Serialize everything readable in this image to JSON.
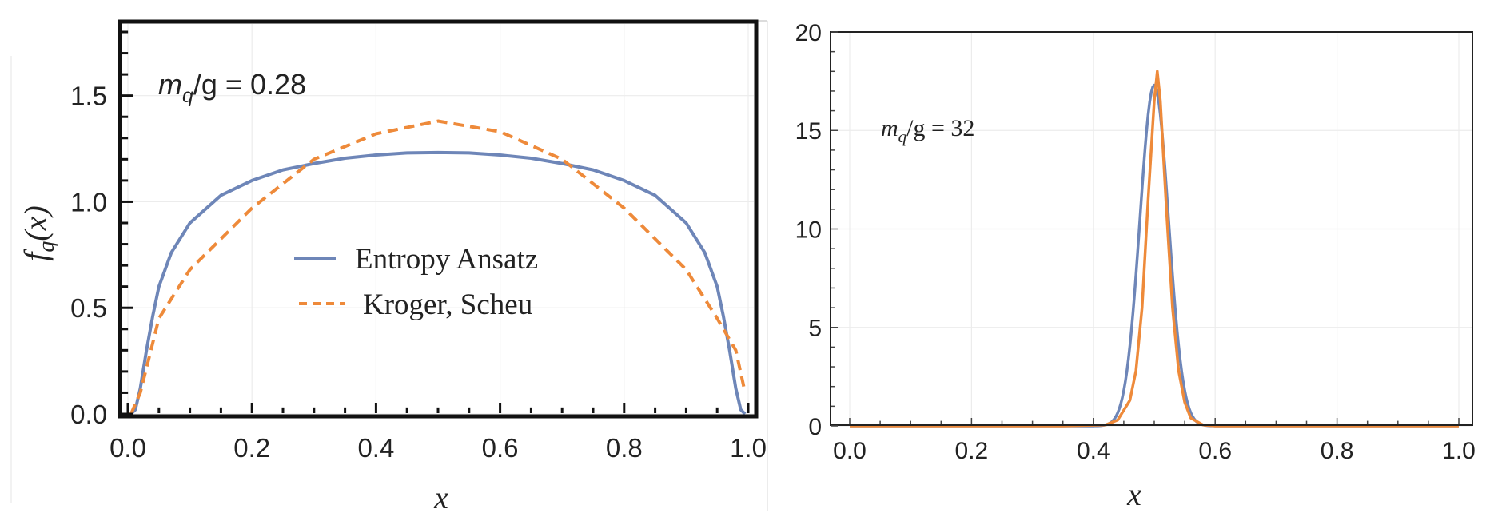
{
  "chart_data": [
    {
      "type": "line",
      "annotation": {
        "m": "m",
        "q": "q",
        "rest": "/g = 0.28"
      },
      "xlabel": "x",
      "ylabel": {
        "f": "f",
        "sub": "q",
        "arg": "(x)"
      },
      "xlim": [
        0,
        1
      ],
      "ylim": [
        0,
        1.8
      ],
      "xticks": [
        0.0,
        0.2,
        0.4,
        0.6,
        0.8,
        1.0
      ],
      "xtick_labels": [
        "0.0",
        "0.2",
        "0.4",
        "0.6",
        "0.8",
        "1.0"
      ],
      "yticks": [
        0.0,
        0.5,
        1.0,
        1.5
      ],
      "ytick_labels": [
        "0.0",
        "0.5",
        "1.0",
        "1.5"
      ],
      "legend": [
        "Entropy Ansatz",
        "Kroger, Scheu"
      ],
      "series": [
        {
          "name": "Entropy Ansatz",
          "color": "#6E86B8",
          "style": "solid",
          "x": [
            0.005,
            0.012,
            0.02,
            0.03,
            0.04,
            0.05,
            0.07,
            0.1,
            0.15,
            0.2,
            0.25,
            0.3,
            0.35,
            0.4,
            0.45,
            0.5,
            0.55,
            0.6,
            0.65,
            0.7,
            0.75,
            0.8,
            0.85,
            0.9,
            0.93,
            0.95,
            0.96,
            0.97,
            0.98,
            0.988,
            0.995
          ],
          "y": [
            0.0,
            0.02,
            0.12,
            0.3,
            0.46,
            0.6,
            0.76,
            0.9,
            1.03,
            1.1,
            1.15,
            1.18,
            1.205,
            1.22,
            1.23,
            1.232,
            1.23,
            1.22,
            1.205,
            1.18,
            1.15,
            1.1,
            1.03,
            0.9,
            0.76,
            0.6,
            0.46,
            0.3,
            0.12,
            0.02,
            0.0
          ]
        },
        {
          "name": "Kroger, Scheu",
          "color": "#EE8A3A",
          "style": "dashed",
          "x": [
            0.005,
            0.02,
            0.05,
            0.1,
            0.2,
            0.3,
            0.4,
            0.5,
            0.6,
            0.7,
            0.8,
            0.9,
            0.95,
            0.98,
            0.995
          ],
          "y": [
            0.0,
            0.1,
            0.45,
            0.68,
            0.97,
            1.2,
            1.32,
            1.38,
            1.33,
            1.2,
            0.97,
            0.68,
            0.45,
            0.3,
            0.1
          ]
        }
      ]
    },
    {
      "type": "line",
      "annotation": {
        "m": "m",
        "q": "q",
        "rest": "/g = 32"
      },
      "xlabel": "x",
      "xlim": [
        0,
        1
      ],
      "ylim": [
        0,
        20
      ],
      "xticks": [
        0.0,
        0.2,
        0.4,
        0.6,
        0.8,
        1.0
      ],
      "xtick_labels": [
        "0.0",
        "0.2",
        "0.4",
        "0.6",
        "0.8",
        "1.0"
      ],
      "yticks": [
        0,
        5,
        10,
        15,
        20
      ],
      "ytick_labels": [
        "0",
        "5",
        "10",
        "15",
        "20"
      ],
      "series": [
        {
          "name": "Entropy Ansatz",
          "color": "#6E86B8",
          "style": "solid",
          "gaussian": {
            "mu": 0.5,
            "sigma": 0.0235,
            "peak": 17.3
          }
        },
        {
          "name": "Kroger, Scheu",
          "color": "#EE8A3A",
          "style": "solid",
          "x": [
            0.0,
            0.35,
            0.42,
            0.44,
            0.46,
            0.47,
            0.48,
            0.49,
            0.5,
            0.505,
            0.51,
            0.52,
            0.53,
            0.54,
            0.55,
            0.56,
            0.58,
            0.6,
            1.0
          ],
          "y": [
            0.0,
            0.0,
            0.05,
            0.3,
            1.3,
            2.8,
            6.0,
            11.5,
            16.5,
            18.0,
            16.5,
            11.0,
            6.0,
            2.8,
            1.2,
            0.4,
            0.05,
            0.0,
            0.0
          ]
        }
      ]
    }
  ]
}
